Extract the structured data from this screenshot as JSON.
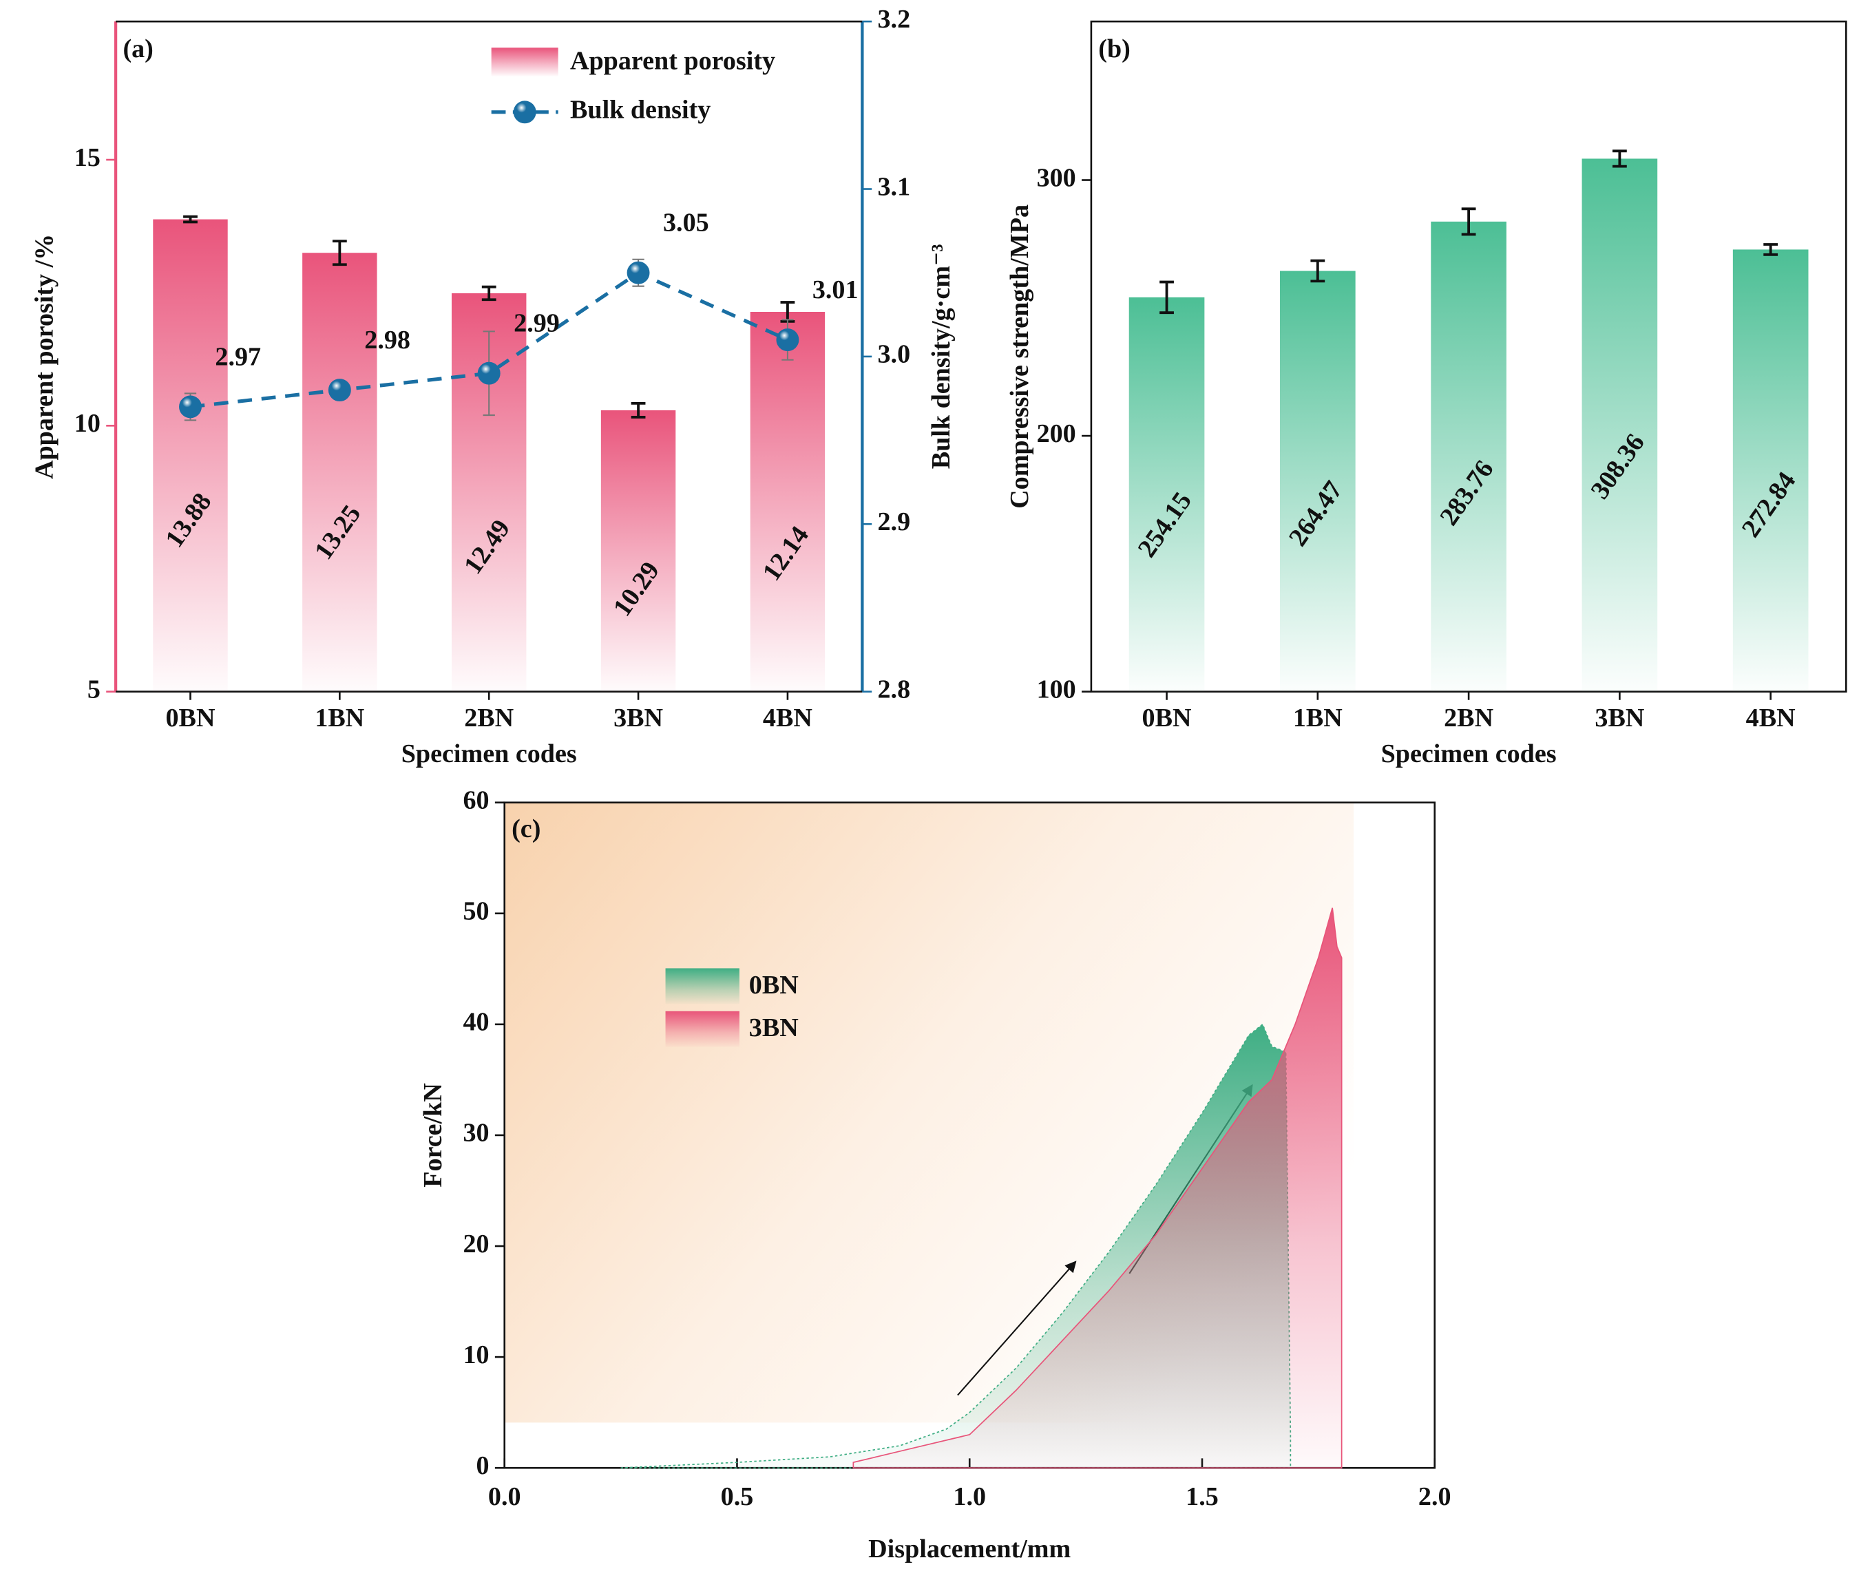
{
  "chart_data": [
    {
      "type": "bar-line",
      "annotation": "(a)",
      "categories": [
        "0BN",
        "1BN",
        "2BN",
        "3BN",
        "4BN"
      ],
      "x_label": "Specimen codes",
      "y_label": "Apparent porosity /%",
      "y2_label": "Bulk density/g·cm⁻³",
      "ylim": [
        5,
        17.6
      ],
      "yticks": [
        5,
        10,
        15
      ],
      "y2lim": [
        2.8,
        3.2
      ],
      "y2ticks": [
        2.8,
        2.9,
        {
          "value": 3,
          "label": "3.0"
        },
        3.1,
        3.2
      ],
      "legend": "upper right",
      "series": [
        {
          "name": "Apparent porosity",
          "color": "#e9547b",
          "values": [
            13.88,
            13.25,
            12.49,
            10.29,
            12.14
          ],
          "errors": [
            0.05,
            0.22,
            0.12,
            0.13,
            0.18
          ]
        },
        {
          "name": "Bulk density",
          "color": "#1a6fa3",
          "axis": "y2",
          "values": [
            2.97,
            2.98,
            2.99,
            3.05,
            3.01
          ],
          "errors": [
            0.008,
            0.004,
            0.025,
            0.008,
            0.012
          ]
        }
      ]
    },
    {
      "type": "bar",
      "annotation": "(b)",
      "categories": [
        "0BN",
        "1BN",
        "2BN",
        "3BN",
        "4BN"
      ],
      "x_label": "Specimen codes",
      "y_label": "Compressive strength/MPa",
      "ylim": [
        100,
        362
      ],
      "yticks": [
        100,
        200,
        300
      ],
      "series": [
        {
          "name": "Compressive strength",
          "color": "#4cbf95",
          "values": [
            254.15,
            264.47,
            283.76,
            308.36,
            272.84
          ],
          "errors": [
            6,
            4,
            5,
            3,
            2
          ]
        }
      ]
    },
    {
      "type": "area",
      "annotation": "(c)",
      "x_label": "Displacement/mm",
      "y_label": "Force/kN",
      "xlim": [
        0,
        2
      ],
      "xticks": [
        {
          "value": 0,
          "label": "0.0"
        },
        0.5,
        {
          "value": 1,
          "label": "1.0"
        },
        1.5,
        {
          "value": 2,
          "label": "2.0"
        }
      ],
      "ylim": [
        0,
        60
      ],
      "yticks": [
        0,
        10,
        20,
        30,
        40,
        50,
        60
      ],
      "series": [
        {
          "name": "0BN",
          "color": "#3fae84",
          "x": [
            0.25,
            0.5,
            0.7,
            0.85,
            0.95,
            1.0,
            1.1,
            1.2,
            1.3,
            1.4,
            1.5,
            1.55,
            1.6,
            1.63,
            1.65,
            1.68,
            1.69
          ],
          "values": [
            0,
            0.5,
            1,
            2,
            3.5,
            5,
            9,
            14,
            19.5,
            25.5,
            32,
            35.5,
            39,
            40,
            38,
            37.5,
            3
          ]
        },
        {
          "name": "3BN",
          "color": "#e8557a",
          "x": [
            0.75,
            0.8,
            0.9,
            1.0,
            1.1,
            1.2,
            1.3,
            1.4,
            1.5,
            1.6,
            1.65,
            1.7,
            1.75,
            1.78,
            1.79,
            1.8,
            1.8
          ],
          "values": [
            0.5,
            1,
            2,
            3,
            7,
            11.5,
            16,
            21,
            27,
            33,
            35,
            40,
            46,
            50.5,
            47,
            46,
            20
          ]
        }
      ]
    }
  ]
}
